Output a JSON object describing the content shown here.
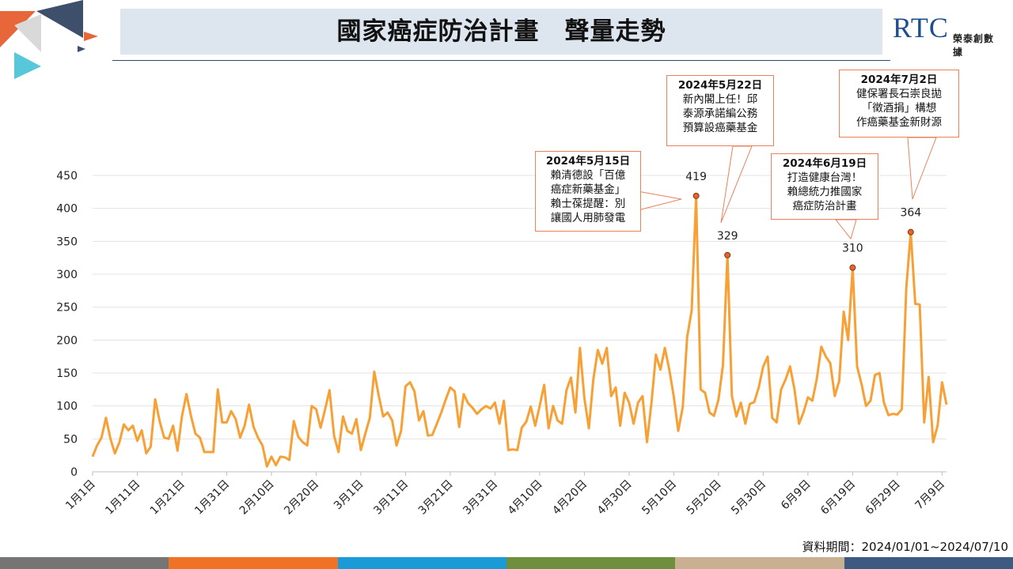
{
  "header": {
    "title": "國家癌症防治計畫　聲量走勢",
    "logo_text": "RTC",
    "logo_sub": "榮泰創數據"
  },
  "footer": {
    "data_period": "資料期間：2024/01/01~2024/07/10",
    "bar_colors": [
      "#757575",
      "#f07224",
      "#1a9bd7",
      "#6f8f3f",
      "#c8b091",
      "#3d5a80"
    ]
  },
  "colors": {
    "line": "#f7a035",
    "marker": "#e8632c",
    "callout_border": "#e8825a"
  },
  "chart_data": {
    "type": "line",
    "x_start": "2024-01-01",
    "x_end": "2024-07-10",
    "ylim": [
      0,
      450
    ],
    "y_ticks": [
      0,
      50,
      100,
      150,
      200,
      250,
      300,
      350,
      400,
      450
    ],
    "x_tick_labels": [
      "1月1日",
      "1月11日",
      "1月21日",
      "1月31日",
      "2月10日",
      "2月20日",
      "3月1日",
      "3月11日",
      "3月21日",
      "3月31日",
      "4月10日",
      "4月20日",
      "4月30日",
      "5月10日",
      "5月20日",
      "5月30日",
      "6月9日",
      "6月19日",
      "6月29日",
      "7月9日"
    ],
    "grid": true,
    "values": [
      23,
      40,
      52,
      82,
      50,
      28,
      45,
      72,
      63,
      70,
      47,
      63,
      28,
      38,
      110,
      77,
      52,
      50,
      70,
      32,
      85,
      118,
      85,
      58,
      52,
      30,
      30,
      30,
      125,
      75,
      75,
      92,
      80,
      52,
      70,
      102,
      68,
      52,
      40,
      8,
      23,
      10,
      23,
      22,
      18,
      77,
      53,
      45,
      40,
      100,
      95,
      67,
      95,
      124,
      55,
      30,
      84,
      62,
      58,
      80,
      33,
      58,
      82,
      152,
      116,
      84,
      90,
      78,
      40,
      62,
      130,
      136,
      122,
      78,
      92,
      55,
      56,
      73,
      90,
      110,
      128,
      122,
      68,
      118,
      104,
      97,
      88,
      95,
      100,
      96,
      105,
      73,
      108,
      33,
      34,
      33,
      67,
      76,
      99,
      70,
      100,
      132,
      66,
      100,
      78,
      73,
      124,
      143,
      90,
      188,
      112,
      66,
      140,
      185,
      164,
      188,
      115,
      128,
      70,
      120,
      105,
      73,
      105,
      115,
      45,
      105,
      178,
      155,
      188,
      155,
      114,
      62,
      98,
      205,
      245,
      419,
      125,
      120,
      90,
      85,
      110,
      162,
      329,
      115,
      84,
      105,
      73,
      103,
      106,
      128,
      160,
      175,
      82,
      75,
      125,
      140,
      160,
      125,
      73,
      90,
      113,
      108,
      142,
      190,
      175,
      165,
      115,
      138,
      243,
      200,
      310,
      160,
      133,
      100,
      108,
      147,
      150,
      105,
      86,
      88,
      87,
      95,
      280,
      364,
      255,
      254,
      75,
      144,
      45,
      70,
      136,
      102
    ],
    "annotations": [
      {
        "date": "2024-05-15",
        "value": 419,
        "label": "419",
        "title": "2024年5月15日",
        "text": [
          "賴清德設「百億",
          "癌症新藥基金」",
          "賴士葆提醒：別",
          "讓國人用肺發電"
        ]
      },
      {
        "date": "2024-05-22",
        "value": 329,
        "label": "329",
        "title": "2024年5月22日",
        "text": [
          "新內閣上任！邱",
          "泰源承諾編公務",
          "預算設癌藥基金"
        ]
      },
      {
        "date": "2024-06-19",
        "value": 310,
        "label": "310",
        "title": "2024年6月19日",
        "text": [
          "打造健康台灣！",
          "賴總統力推國家",
          "癌症防治計畫"
        ]
      },
      {
        "date": "2024-07-02",
        "value": 364,
        "label": "364",
        "title": "2024年7月2日",
        "text": [
          "健保署長石崇良拋",
          "「徵酒捐」構想",
          "作癌藥基金新財源"
        ]
      }
    ]
  }
}
